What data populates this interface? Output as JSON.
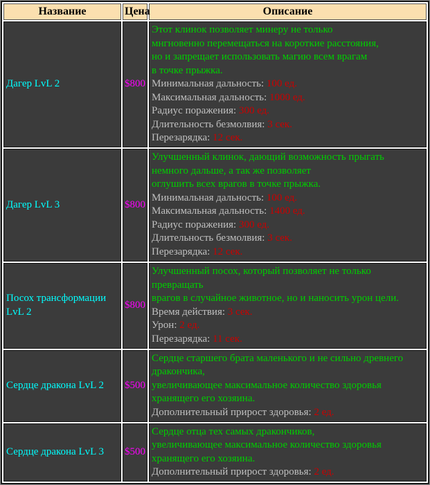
{
  "header": {
    "name": "Название",
    "price": "Цена",
    "description": "Описание"
  },
  "colors": {
    "header_bg": "#FBDFAF",
    "cell_bg": "#3B3B3B",
    "grid_gap": "#FFFFFF",
    "item_name": "#00FFFF",
    "item_price": "#FF00FF",
    "flavor_text": "#00CE00",
    "stat_label": "#C0C0C0",
    "stat_value": "#CC0000"
  },
  "rows": [
    {
      "name": "Дагер LvL 2",
      "price": "$800",
      "flavor": [
        "Этот клинок позволяет минеру не только",
        "мнгновенно перемещаться на короткие расстояния,",
        "но и запрещает использовать магию всем врагам",
        "в точке прыжка."
      ],
      "stats": [
        {
          "label": "Минимальная дальность:",
          "value": "100 ед."
        },
        {
          "label": "Максимальная дальность:",
          "value": "1000 ед."
        },
        {
          "label": "Радиус поражения:",
          "value": "300 ед."
        },
        {
          "label": "Длительность безмолвия:",
          "value": "3 сек."
        },
        {
          "label": "Перезарядка:",
          "value": "12 сек."
        }
      ]
    },
    {
      "name": "Дагер LvL 3",
      "price": "$800",
      "flavor": [
        "Улучшенный клинок, дающий возможность прыгать",
        "немного дальше, а так же позволяет",
        "оглушить всех врагов в точке прыжка."
      ],
      "stats": [
        {
          "label": "Минимальная дальность:",
          "value": "100 ед."
        },
        {
          "label": "Максимальная дальность:",
          "value": "1400 ед."
        },
        {
          "label": "Радиус поражения:",
          "value": "300 ед."
        },
        {
          "label": "Длительность безмолвия:",
          "value": "3 сек."
        },
        {
          "label": "Перезарядка:",
          "value": "12 сек."
        }
      ]
    },
    {
      "name": "Посох трансформации LvL 2",
      "price": "$800",
      "flavor": [
        "Улучшенный посох, который позволяет не только",
        "превращать",
        "врагов в случайное животное, но и наносить урон цели."
      ],
      "stats": [
        {
          "label": "Время действия:",
          "value": "3 сек."
        },
        {
          "label": "Урон:",
          "value": "2 ед."
        },
        {
          "label": "Перезарядка:",
          "value": "11 сек."
        }
      ]
    },
    {
      "name": "Сердце дракона LvL 2",
      "price": "$500",
      "flavor": [
        "Сердце старшего брата маленького и не сильно древнего",
        "дракончика,",
        "увеличивающее максимальное количество здоровья",
        "хранящего его хозяина."
      ],
      "stats": [
        {
          "label": "Дополнительный прирост здоровья:",
          "value": "2 ед."
        }
      ]
    },
    {
      "name": "Сердце дракона LvL 3",
      "price": "$500",
      "flavor": [
        "Сердце отца тех самых дракончиков,",
        "увеличивающее максимальное количество здоровья",
        "хранящего его хозяина."
      ],
      "stats": [
        {
          "label": "Дополнительный прирост здоровья:",
          "value": "2 ед."
        }
      ]
    }
  ]
}
